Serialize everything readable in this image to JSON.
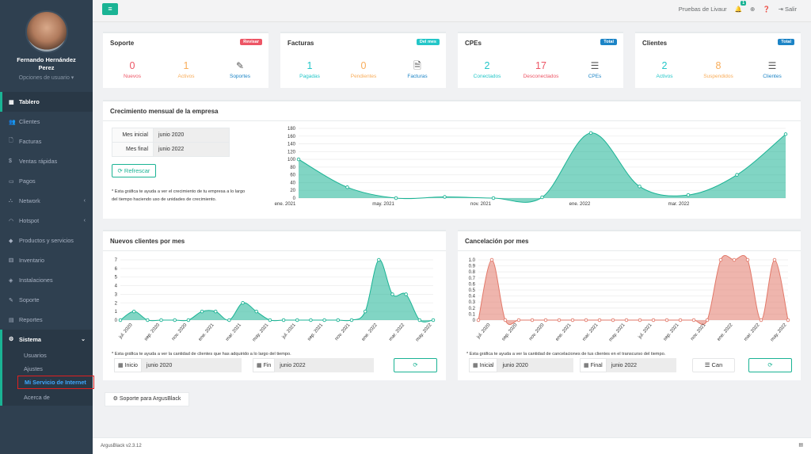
{
  "sidebar": {
    "user_name": "Fernando Hernández Perez",
    "user_options": "Opciones de usuario ▾",
    "items": [
      {
        "label": "Tablero",
        "icon": "dashboard-icon",
        "glyph": "▦",
        "active": true
      },
      {
        "label": "Clientes",
        "icon": "users-icon",
        "glyph": "👥"
      },
      {
        "label": "Facturas",
        "icon": "file-icon",
        "glyph": "🗋"
      },
      {
        "label": "Ventas rápidas",
        "icon": "dollar-icon",
        "glyph": "$"
      },
      {
        "label": "Pagos",
        "icon": "money-icon",
        "glyph": "▭"
      },
      {
        "label": "Network",
        "icon": "sitemap-icon",
        "glyph": "⛬",
        "arrow": true
      },
      {
        "label": "Hotspot",
        "icon": "wifi-icon",
        "glyph": "◠",
        "arrow": true
      },
      {
        "label": "Productos y servicios",
        "icon": "tag-icon",
        "glyph": "◆"
      },
      {
        "label": "Inventario",
        "icon": "cubes-icon",
        "glyph": "⚅"
      },
      {
        "label": "Instalaciones",
        "icon": "ticket-icon",
        "glyph": "◈"
      },
      {
        "label": "Soporte",
        "icon": "wrench-icon",
        "glyph": "✎"
      },
      {
        "label": "Reportes",
        "icon": "report-icon",
        "glyph": "▤"
      }
    ],
    "system": {
      "label": "Sistema",
      "glyph": "⚙",
      "subitems": [
        "Usuarios",
        "Ajustes",
        "Mi Servicio de Internet",
        "Acerca de"
      ]
    }
  },
  "topbar": {
    "menu_glyph": "≡",
    "company": "Pruebas de Livaur",
    "notif_count": "1",
    "logout": "Salir"
  },
  "cards": {
    "soporte": {
      "title": "Soporte",
      "badge": "Revisar",
      "badge_color": "#ed5565",
      "stats": [
        {
          "num": "0",
          "label": "Nuevos",
          "color": "#ed5565"
        },
        {
          "num": "1",
          "label": "Activos",
          "color": "#f8ac59"
        },
        {
          "icon": "✎",
          "label": "Soportes",
          "color": "#1c84c6"
        }
      ]
    },
    "facturas": {
      "title": "Facturas",
      "badge": "Del mes",
      "badge_color": "#23c6c8",
      "stats": [
        {
          "num": "1",
          "label": "Pagadas",
          "color": "#23c6c8"
        },
        {
          "num": "0",
          "label": "Pendientes",
          "color": "#f8ac59"
        },
        {
          "icon": "🗎",
          "label": "Facturas",
          "color": "#1c84c6"
        }
      ]
    },
    "cpes": {
      "title": "CPEs",
      "badge": "Total",
      "badge_color": "#1c84c6",
      "stats": [
        {
          "num": "2",
          "label": "Conectados",
          "color": "#23c6c8"
        },
        {
          "num": "17",
          "label": "Desconectados",
          "color": "#ed5565"
        },
        {
          "icon": "☰",
          "label": "CPEs",
          "color": "#1c84c6"
        }
      ]
    },
    "clientes": {
      "title": "Clientes",
      "badge": "Total",
      "badge_color": "#1c84c6",
      "stats": [
        {
          "num": "2",
          "label": "Activos",
          "color": "#23c6c8"
        },
        {
          "num": "8",
          "label": "Suspendidos",
          "color": "#f8ac59"
        },
        {
          "icon": "☰",
          "label": "Clientes",
          "color": "#1c84c6"
        }
      ]
    }
  },
  "growth": {
    "title": "Crecimiento mensual de la empresa",
    "start_label": "Mes inicial",
    "start_value": "junio 2020",
    "end_label": "Mes final",
    "end_value": "junio 2022",
    "refresh": "⟳ Refrescar",
    "note": "* Esta gráfica te ayuda a ver el crecimiento de tu empresa a lo largo del tiempo haciendo uso de unidades de crecimiento."
  },
  "new_clients": {
    "title": "Nuevos clientes por mes",
    "note": "* Esta gráfica te ayuda a ver la cantidad de clientes que has adquirido a lo largo del tiempo.",
    "start_label": "Inicio",
    "start_value": "junio 2020",
    "end_label": "Fin",
    "end_value": "junio 2022",
    "refresh": "⟳"
  },
  "cancellations": {
    "title": "Cancelación por mes",
    "note": "* Esta gráfica te ayuda a ver la cantidad de cancelaciones de tus clientes en el transcurso del tiempo.",
    "start_label": "Inicial",
    "start_value": "junio 2020",
    "end_label": "Final",
    "end_value": "junio 2022",
    "can": "Can",
    "refresh": "⟳"
  },
  "support_button": "Soporte para ArgusBlack",
  "footer": "ArgusBlack v2.3.12",
  "chart_data": [
    {
      "type": "area",
      "color": "#1ab394",
      "ylim": [
        0,
        180
      ],
      "yticks": [
        0,
        20,
        40,
        60,
        80,
        100,
        120,
        140,
        160,
        180
      ],
      "x": [
        "2020-10",
        "2020-12",
        "2021-02",
        "2021-04",
        "2021-06",
        "2021-08",
        "2021-10",
        "2021-12",
        "2022-02",
        "2022-04",
        "2022-06"
      ],
      "values": [
        100,
        28,
        0,
        3,
        0,
        2,
        168,
        30,
        8,
        60,
        165
      ],
      "xticks": [
        "ene. 2021",
        "may. 2021",
        "nov. 2021",
        "ene. 2022",
        "mar. 2022"
      ]
    },
    {
      "type": "area",
      "color": "#1ab394",
      "ylim": [
        0,
        7
      ],
      "yticks": [
        0,
        1,
        2,
        3,
        4,
        5,
        6,
        7
      ],
      "values": [
        0,
        1,
        0,
        0,
        0,
        0,
        1,
        1,
        0,
        2,
        1,
        0,
        0,
        0,
        0,
        0,
        0,
        0,
        1,
        7,
        3,
        3,
        0,
        0
      ],
      "xticks": [
        "jul. 2020",
        "sep. 2020",
        "nov. 2020",
        "ene. 2021",
        "mar. 2021",
        "may. 2021",
        "jul. 2021",
        "sep. 2021",
        "nov. 2021",
        "ene. 2022",
        "mar. 2022",
        "may. 2022"
      ]
    },
    {
      "type": "area",
      "color": "#e2796a",
      "ylim": [
        0,
        1
      ],
      "yticks": [
        "0",
        "0.1",
        "0.2",
        "0.3",
        "0.4",
        "0.5",
        "0.6",
        "0.7",
        "0.8",
        "0.9",
        "1.0"
      ],
      "values": [
        0,
        1,
        0,
        0,
        0,
        0,
        0,
        0,
        0,
        0,
        0,
        0,
        0,
        0,
        0,
        0,
        0,
        0,
        1,
        1,
        1,
        0,
        1,
        0
      ],
      "xticks": [
        "jul. 2020",
        "sep. 2020",
        "nov. 2020",
        "ene. 2021",
        "mar. 2021",
        "may. 2021",
        "jul. 2021",
        "sep. 2021",
        "nov. 2021",
        "ene. 2022",
        "mar. 2022",
        "may. 2022"
      ]
    }
  ]
}
